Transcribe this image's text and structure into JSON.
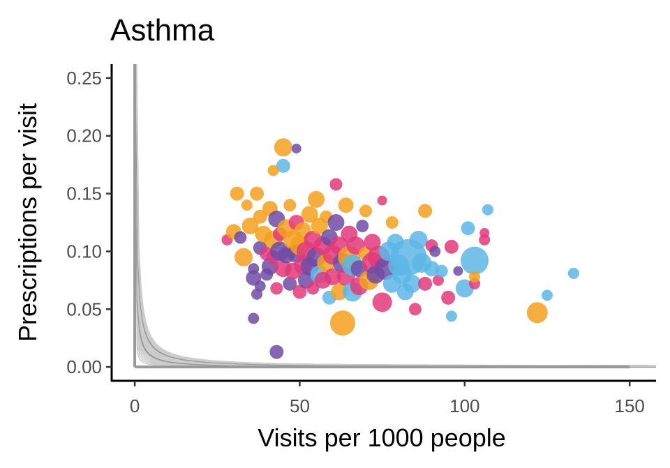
{
  "chart_data": {
    "type": "scatter",
    "title": "Asthma",
    "xlabel": "Visits per 1000 people",
    "ylabel": "Prescriptions per visit",
    "xlim": [
      -7,
      158
    ],
    "ylim": [
      -0.012,
      0.262
    ],
    "x_ticks": [
      0,
      50,
      100,
      150
    ],
    "x_tick_labels": [
      "0",
      "50",
      "100",
      "150"
    ],
    "y_ticks": [
      0.0,
      0.05,
      0.1,
      0.15,
      0.2,
      0.25
    ],
    "y_tick_labels": [
      "0.00",
      "0.05",
      "0.10",
      "0.15",
      "0.20",
      "0.25"
    ],
    "grid": false,
    "colors": {
      "orange": "#F5A01E",
      "purple": "#6E4BA4",
      "pink": "#E0397A",
      "blue": "#5DB6E6",
      "reference_line": "#999999",
      "minor_curve": "#cccccc",
      "major_curve": "#999999"
    },
    "reference_lines": {
      "x": 0,
      "y": 0,
      "x_max": 150
    },
    "iso_curves": {
      "products": [
        1,
        1.5,
        2,
        2.5,
        3,
        3.5,
        4,
        4.5,
        5,
        5.5,
        6,
        6.5,
        7,
        7.5,
        8,
        8.5,
        9,
        9.5,
        10,
        10.5,
        11,
        11.5,
        12,
        12.5,
        13
      ],
      "major_products": [
        5,
        10
      ]
    },
    "points": [
      {
        "x": 45,
        "y": 0.19,
        "s": 13,
        "c": "orange"
      },
      {
        "x": 49,
        "y": 0.189,
        "s": 7,
        "c": "purple"
      },
      {
        "x": 45,
        "y": 0.174,
        "s": 10,
        "c": "blue"
      },
      {
        "x": 42,
        "y": 0.17,
        "s": 8,
        "c": "orange"
      },
      {
        "x": 43,
        "y": 0.013,
        "s": 10,
        "c": "purple"
      },
      {
        "x": 36,
        "y": 0.042,
        "s": 8,
        "c": "purple"
      },
      {
        "x": 31,
        "y": 0.15,
        "s": 10,
        "c": "orange"
      },
      {
        "x": 37,
        "y": 0.15,
        "s": 10,
        "c": "orange"
      },
      {
        "x": 34,
        "y": 0.14,
        "s": 8,
        "c": "orange"
      },
      {
        "x": 28,
        "y": 0.11,
        "s": 8,
        "c": "pink"
      },
      {
        "x": 30,
        "y": 0.117,
        "s": 11,
        "c": "orange"
      },
      {
        "x": 32,
        "y": 0.112,
        "s": 9,
        "c": "purple"
      },
      {
        "x": 33,
        "y": 0.095,
        "s": 13,
        "c": "orange"
      },
      {
        "x": 35,
        "y": 0.122,
        "s": 12,
        "c": "orange"
      },
      {
        "x": 36,
        "y": 0.085,
        "s": 8,
        "c": "purple"
      },
      {
        "x": 36,
        "y": 0.077,
        "s": 11,
        "c": "purple"
      },
      {
        "x": 37,
        "y": 0.063,
        "s": 8,
        "c": "purple"
      },
      {
        "x": 38,
        "y": 0.103,
        "s": 10,
        "c": "purple"
      },
      {
        "x": 38,
        "y": 0.13,
        "s": 10,
        "c": "orange"
      },
      {
        "x": 38,
        "y": 0.07,
        "s": 8,
        "c": "purple"
      },
      {
        "x": 39,
        "y": 0.115,
        "s": 12,
        "c": "orange"
      },
      {
        "x": 40,
        "y": 0.098,
        "s": 10,
        "c": "pink"
      },
      {
        "x": 40,
        "y": 0.08,
        "s": 9,
        "c": "purple"
      },
      {
        "x": 41,
        "y": 0.137,
        "s": 11,
        "c": "orange"
      },
      {
        "x": 41,
        "y": 0.087,
        "s": 12,
        "c": "purple"
      },
      {
        "x": 42,
        "y": 0.11,
        "s": 13,
        "c": "orange"
      },
      {
        "x": 42,
        "y": 0.095,
        "s": 10,
        "c": "pink"
      },
      {
        "x": 43,
        "y": 0.128,
        "s": 12,
        "c": "purple"
      },
      {
        "x": 43,
        "y": 0.068,
        "s": 9,
        "c": "pink"
      },
      {
        "x": 44,
        "y": 0.1,
        "s": 14,
        "c": "purple"
      },
      {
        "x": 44,
        "y": 0.115,
        "s": 10,
        "c": "pink"
      },
      {
        "x": 45,
        "y": 0.085,
        "s": 12,
        "c": "pink"
      },
      {
        "x": 46,
        "y": 0.12,
        "s": 13,
        "c": "orange"
      },
      {
        "x": 46,
        "y": 0.097,
        "s": 12,
        "c": "purple"
      },
      {
        "x": 47,
        "y": 0.072,
        "s": 10,
        "c": "purple"
      },
      {
        "x": 47,
        "y": 0.14,
        "s": 9,
        "c": "orange"
      },
      {
        "x": 48,
        "y": 0.11,
        "s": 14,
        "c": "orange"
      },
      {
        "x": 48,
        "y": 0.083,
        "s": 12,
        "c": "pink"
      },
      {
        "x": 49,
        "y": 0.098,
        "s": 13,
        "c": "purple"
      },
      {
        "x": 49,
        "y": 0.125,
        "s": 11,
        "c": "pink"
      },
      {
        "x": 50,
        "y": 0.065,
        "s": 10,
        "c": "pink"
      },
      {
        "x": 50,
        "y": 0.105,
        "s": 14,
        "c": "orange"
      },
      {
        "x": 51,
        "y": 0.088,
        "s": 13,
        "c": "pink"
      },
      {
        "x": 51,
        "y": 0.118,
        "s": 12,
        "c": "orange"
      },
      {
        "x": 52,
        "y": 0.075,
        "s": 12,
        "c": "purple"
      },
      {
        "x": 52,
        "y": 0.1,
        "s": 14,
        "c": "pink"
      },
      {
        "x": 53,
        "y": 0.132,
        "s": 12,
        "c": "orange"
      },
      {
        "x": 53,
        "y": 0.087,
        "s": 13,
        "c": "purple"
      },
      {
        "x": 54,
        "y": 0.11,
        "s": 13,
        "c": "pink"
      },
      {
        "x": 54,
        "y": 0.068,
        "s": 9,
        "c": "pink"
      },
      {
        "x": 55,
        "y": 0.145,
        "s": 12,
        "c": "orange"
      },
      {
        "x": 55,
        "y": 0.095,
        "s": 14,
        "c": "purple"
      },
      {
        "x": 56,
        "y": 0.08,
        "s": 13,
        "c": "blue"
      },
      {
        "x": 56,
        "y": 0.122,
        "s": 12,
        "c": "orange"
      },
      {
        "x": 57,
        "y": 0.105,
        "s": 13,
        "c": "pink"
      },
      {
        "x": 57,
        "y": 0.075,
        "s": 12,
        "c": "pink"
      },
      {
        "x": 58,
        "y": 0.13,
        "s": 9,
        "c": "orange"
      },
      {
        "x": 58,
        "y": 0.09,
        "s": 13,
        "c": "orange"
      },
      {
        "x": 59,
        "y": 0.06,
        "s": 10,
        "c": "blue"
      },
      {
        "x": 59,
        "y": 0.112,
        "s": 12,
        "c": "purple"
      },
      {
        "x": 60,
        "y": 0.097,
        "s": 14,
        "c": "pink"
      },
      {
        "x": 60,
        "y": 0.078,
        "s": 12,
        "c": "pink"
      },
      {
        "x": 61,
        "y": 0.158,
        "s": 9,
        "c": "pink"
      },
      {
        "x": 61,
        "y": 0.125,
        "s": 12,
        "c": "purple"
      },
      {
        "x": 62,
        "y": 0.105,
        "s": 13,
        "c": "pink"
      },
      {
        "x": 62,
        "y": 0.065,
        "s": 12,
        "c": "orange"
      },
      {
        "x": 63,
        "y": 0.09,
        "s": 14,
        "c": "purple"
      },
      {
        "x": 63,
        "y": 0.038,
        "s": 18,
        "c": "orange"
      },
      {
        "x": 64,
        "y": 0.14,
        "s": 11,
        "c": "orange"
      },
      {
        "x": 64,
        "y": 0.078,
        "s": 13,
        "c": "pink"
      },
      {
        "x": 65,
        "y": 0.115,
        "s": 12,
        "c": "pink"
      },
      {
        "x": 65,
        "y": 0.095,
        "s": 16,
        "c": "orange"
      },
      {
        "x": 66,
        "y": 0.065,
        "s": 14,
        "c": "blue"
      },
      {
        "x": 66,
        "y": 0.088,
        "s": 15,
        "c": "blue"
      },
      {
        "x": 67,
        "y": 0.105,
        "s": 13,
        "c": "pink"
      },
      {
        "x": 68,
        "y": 0.085,
        "s": 12,
        "c": "purple"
      },
      {
        "x": 68,
        "y": 0.07,
        "s": 13,
        "c": "pink"
      },
      {
        "x": 69,
        "y": 0.122,
        "s": 9,
        "c": "purple"
      },
      {
        "x": 70,
        "y": 0.098,
        "s": 10,
        "c": "orange"
      },
      {
        "x": 70,
        "y": 0.135,
        "s": 9,
        "c": "orange"
      },
      {
        "x": 71,
        "y": 0.075,
        "s": 14,
        "c": "orange"
      },
      {
        "x": 72,
        "y": 0.09,
        "s": 15,
        "c": "pink"
      },
      {
        "x": 72,
        "y": 0.108,
        "s": 12,
        "c": "pink"
      },
      {
        "x": 73,
        "y": 0.08,
        "s": 13,
        "c": "purple"
      },
      {
        "x": 74,
        "y": 0.095,
        "s": 16,
        "c": "pink"
      },
      {
        "x": 75,
        "y": 0.056,
        "s": 14,
        "c": "pink"
      },
      {
        "x": 75,
        "y": 0.144,
        "s": 7,
        "c": "pink"
      },
      {
        "x": 76,
        "y": 0.085,
        "s": 16,
        "c": "purple"
      },
      {
        "x": 77,
        "y": 0.1,
        "s": 14,
        "c": "blue"
      },
      {
        "x": 78,
        "y": 0.125,
        "s": 9,
        "c": "orange"
      },
      {
        "x": 78,
        "y": 0.072,
        "s": 13,
        "c": "blue"
      },
      {
        "x": 79,
        "y": 0.108,
        "s": 12,
        "c": "blue"
      },
      {
        "x": 80,
        "y": 0.088,
        "s": 15,
        "c": "blue"
      },
      {
        "x": 81,
        "y": 0.08,
        "s": 14,
        "c": "blue"
      },
      {
        "x": 82,
        "y": 0.065,
        "s": 12,
        "c": "blue"
      },
      {
        "x": 83,
        "y": 0.095,
        "s": 26,
        "c": "blue"
      },
      {
        "x": 84,
        "y": 0.072,
        "s": 13,
        "c": "blue"
      },
      {
        "x": 85,
        "y": 0.05,
        "s": 9,
        "c": "pink"
      },
      {
        "x": 86,
        "y": 0.11,
        "s": 13,
        "c": "blue"
      },
      {
        "x": 87,
        "y": 0.09,
        "s": 14,
        "c": "blue"
      },
      {
        "x": 88,
        "y": 0.072,
        "s": 10,
        "c": "pink"
      },
      {
        "x": 88,
        "y": 0.135,
        "s": 10,
        "c": "orange"
      },
      {
        "x": 90,
        "y": 0.085,
        "s": 11,
        "c": "blue"
      },
      {
        "x": 90,
        "y": 0.105,
        "s": 9,
        "c": "pink"
      },
      {
        "x": 91,
        "y": 0.1,
        "s": 8,
        "c": "purple"
      },
      {
        "x": 92,
        "y": 0.075,
        "s": 8,
        "c": "pink"
      },
      {
        "x": 93,
        "y": 0.083,
        "s": 9,
        "c": "blue"
      },
      {
        "x": 95,
        "y": 0.06,
        "s": 10,
        "c": "pink"
      },
      {
        "x": 96,
        "y": 0.044,
        "s": 8,
        "c": "blue"
      },
      {
        "x": 96,
        "y": 0.104,
        "s": 10,
        "c": "pink"
      },
      {
        "x": 98,
        "y": 0.083,
        "s": 7,
        "c": "purple"
      },
      {
        "x": 100,
        "y": 0.068,
        "s": 13,
        "c": "blue"
      },
      {
        "x": 101,
        "y": 0.12,
        "s": 10,
        "c": "blue"
      },
      {
        "x": 103,
        "y": 0.072,
        "s": 8,
        "c": "pink"
      },
      {
        "x": 103,
        "y": 0.092,
        "s": 20,
        "c": "blue"
      },
      {
        "x": 106,
        "y": 0.11,
        "s": 8,
        "c": "pink"
      },
      {
        "x": 106,
        "y": 0.116,
        "s": 7,
        "c": "pink"
      },
      {
        "x": 107,
        "y": 0.136,
        "s": 8,
        "c": "blue"
      },
      {
        "x": 103,
        "y": 0.078,
        "s": 8,
        "c": "orange"
      },
      {
        "x": 122,
        "y": 0.047,
        "s": 15,
        "c": "orange"
      },
      {
        "x": 125,
        "y": 0.062,
        "s": 8,
        "c": "blue"
      },
      {
        "x": 133,
        "y": 0.081,
        "s": 8,
        "c": "blue"
      }
    ]
  }
}
